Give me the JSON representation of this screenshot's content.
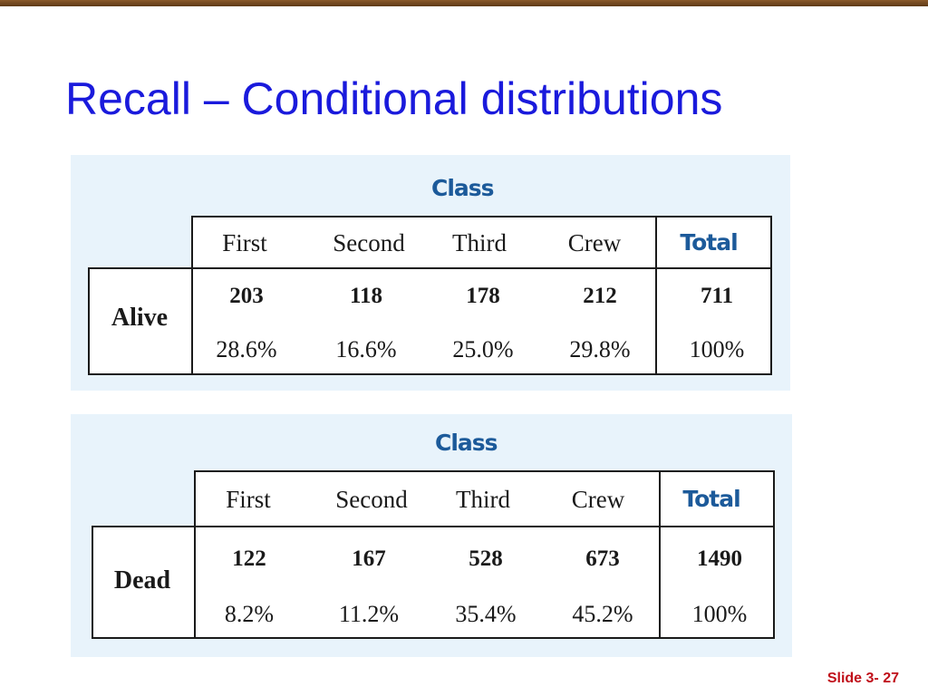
{
  "slide": {
    "title": "Recall – Conditional distributions",
    "footer": "Slide 3- 27"
  },
  "alive_table": {
    "group_label": "Class",
    "columns": [
      "First",
      "Second",
      "Third",
      "Crew",
      "Total"
    ],
    "row_label": "Alive",
    "counts": [
      "203",
      "118",
      "178",
      "212",
      "711"
    ],
    "percents": [
      "28.6%",
      "16.6%",
      "25.0%",
      "29.8%",
      "100%"
    ]
  },
  "dead_table": {
    "group_label": "Class",
    "columns": [
      "First",
      "Second",
      "Third",
      "Crew",
      "Total"
    ],
    "row_label": "Dead",
    "counts": [
      "122",
      "167",
      "528",
      "673",
      "1490"
    ],
    "percents": [
      "8.2%",
      "11.2%",
      "35.4%",
      "45.2%",
      "100%"
    ]
  }
}
